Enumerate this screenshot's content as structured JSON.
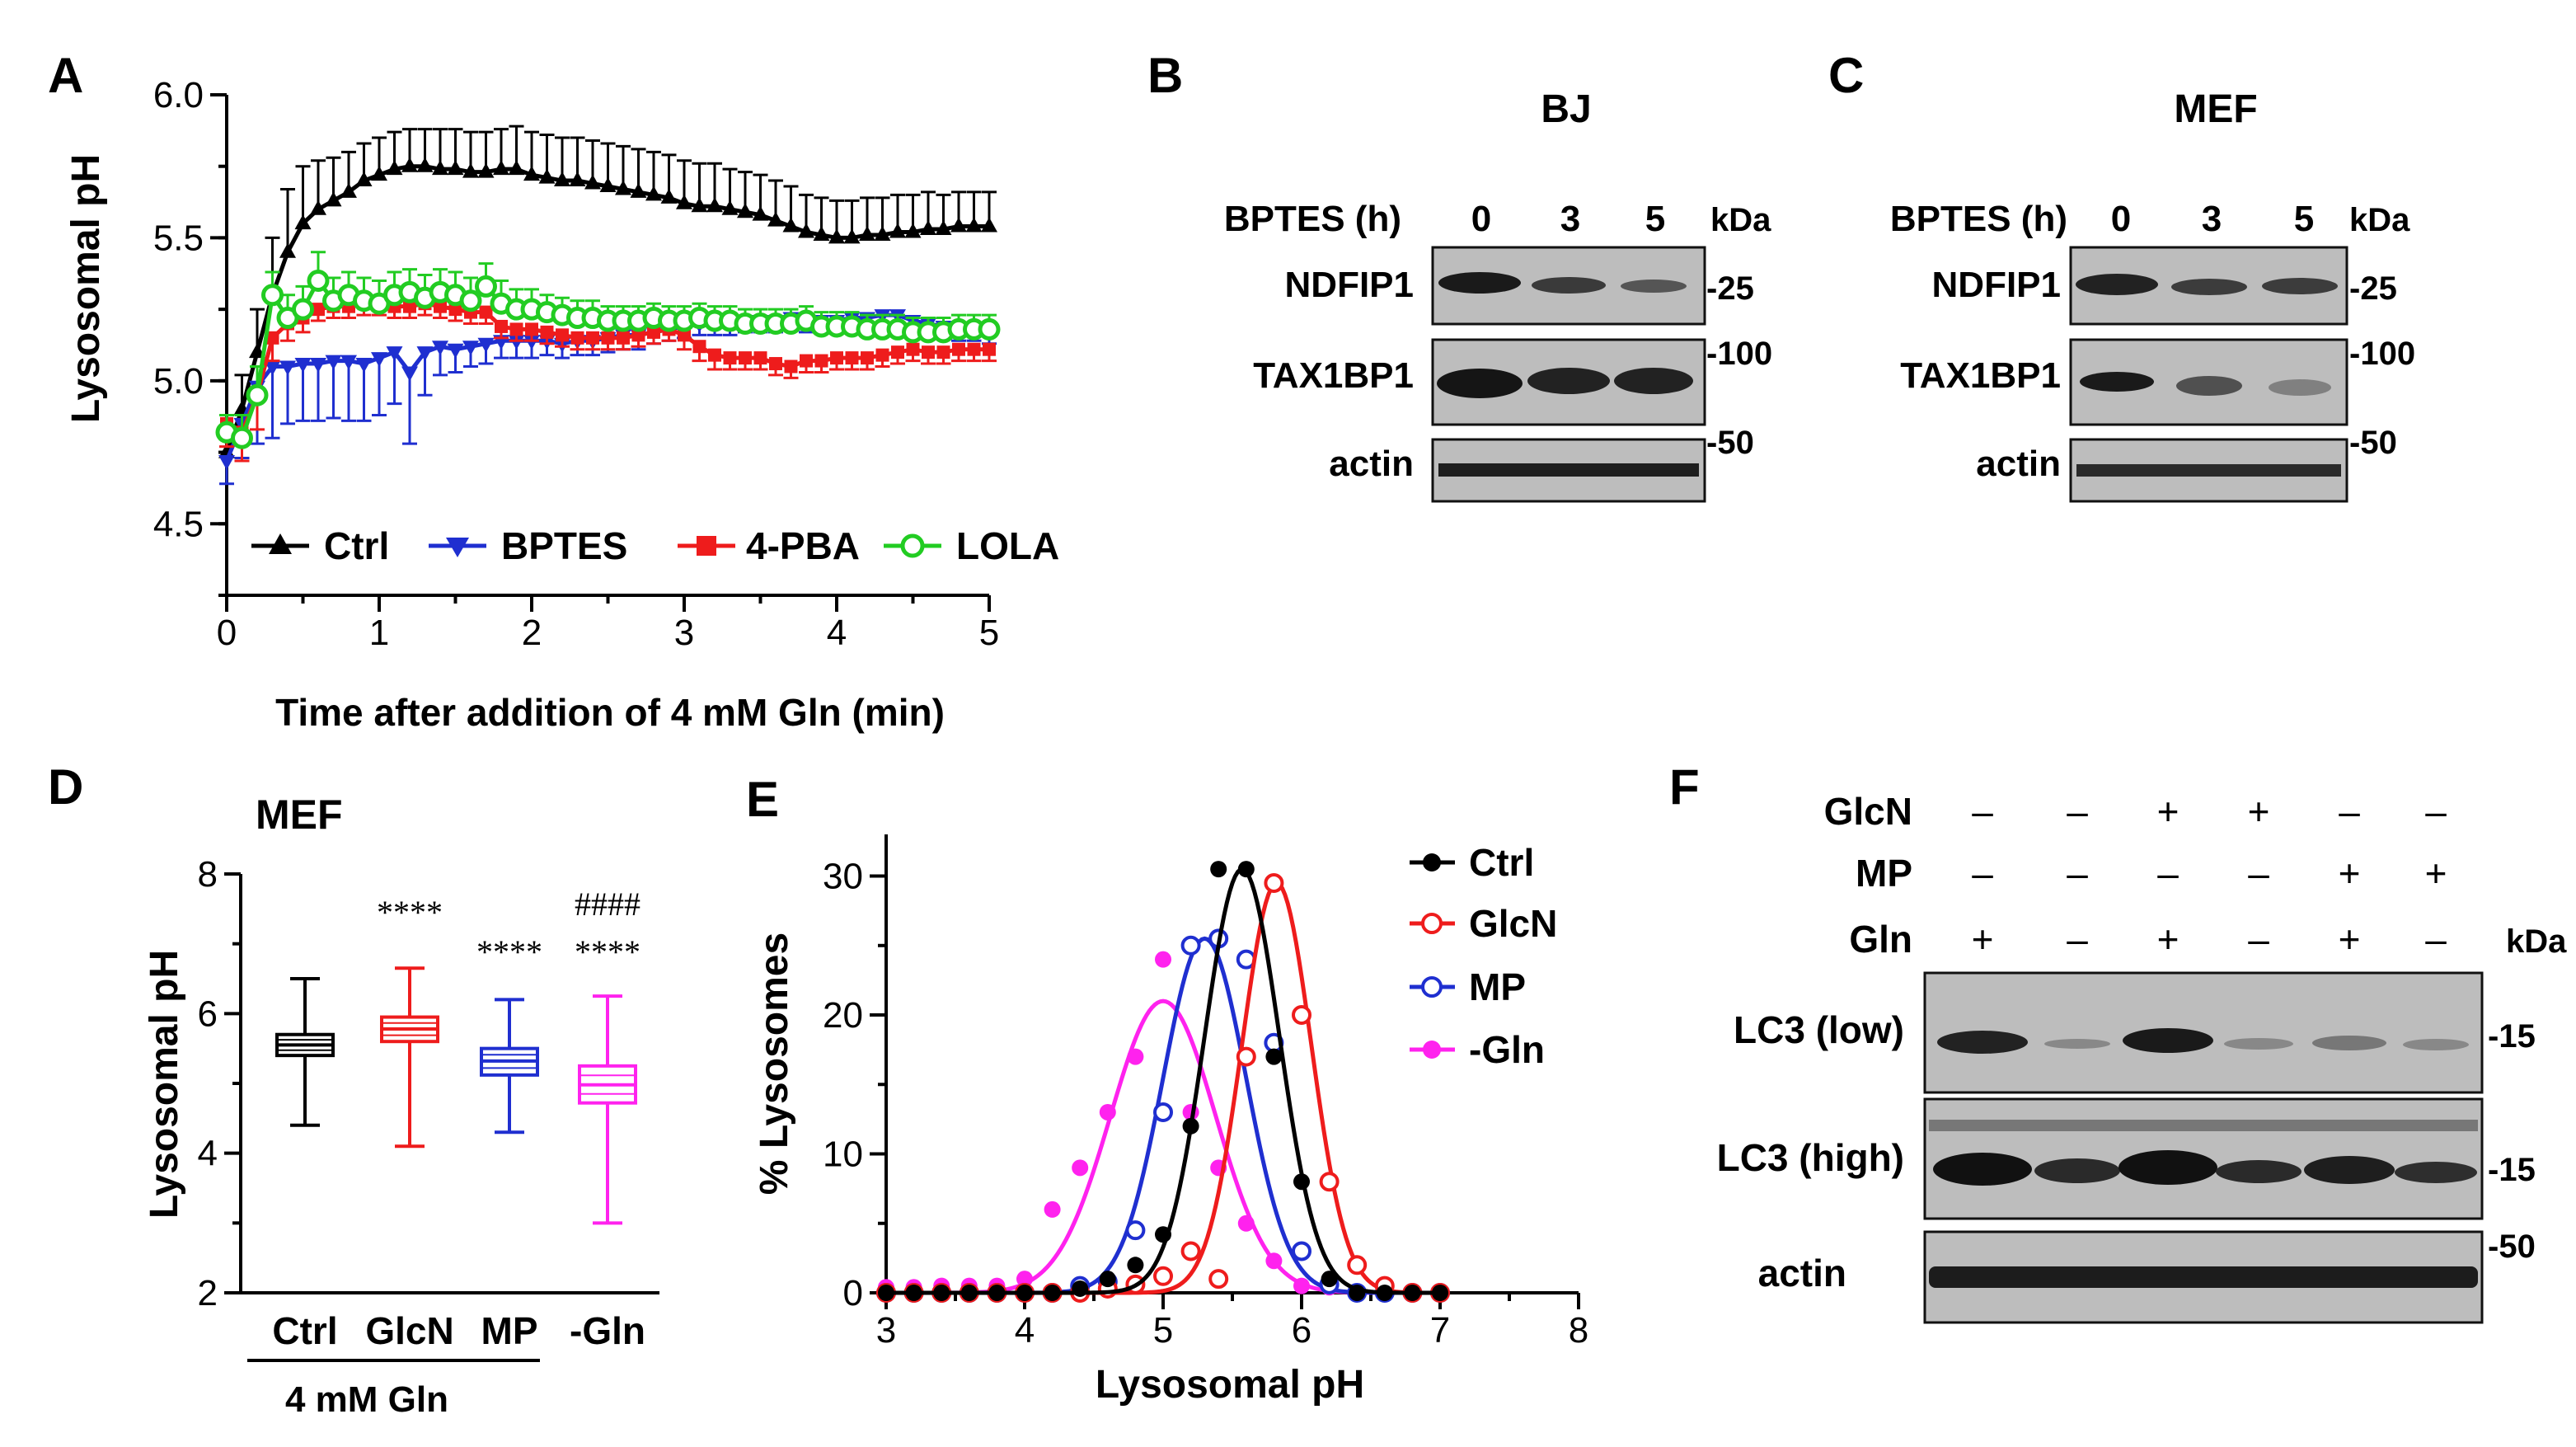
{
  "panel_labels": {
    "a": "A",
    "b": "B",
    "c": "C",
    "d": "D",
    "e": "E",
    "f": "F"
  },
  "colors": {
    "ctrl": "#000000",
    "bptes": "#1f2fd0",
    "pba": "#ee1c1c",
    "lola": "#22cc22",
    "glcn": "#ee1c1c",
    "mp": "#1f2fd0",
    "minus_gln": "#ff22ee"
  },
  "chart_data": [
    {
      "panel": "A",
      "type": "line",
      "title": "",
      "xlabel": "Time after addition of 4 mM Gln (min)",
      "ylabel": "Lysosomal pH",
      "xlim": [
        0,
        5
      ],
      "ylim": [
        4.25,
        6.0
      ],
      "xticks": [
        "0",
        "1",
        "2",
        "3",
        "4",
        "5"
      ],
      "yticks": [
        "4.5",
        "5.0",
        "5.5",
        "6.0"
      ],
      "legend": [
        "Ctrl",
        "BPTES",
        "4-PBA",
        "LOLA"
      ],
      "series": [
        {
          "name": "Ctrl",
          "x": [
            0,
            0.1,
            0.2,
            0.3,
            0.4,
            0.5,
            0.6,
            0.7,
            0.8,
            0.9,
            1.0,
            1.1,
            1.2,
            1.3,
            1.4,
            1.5,
            1.6,
            1.7,
            1.8,
            1.9,
            2.0,
            2.1,
            2.2,
            2.3,
            2.4,
            2.5,
            2.6,
            2.7,
            2.8,
            2.9,
            3.0,
            3.1,
            3.2,
            3.3,
            3.4,
            3.5,
            3.6,
            3.7,
            3.8,
            3.9,
            4.0,
            4.1,
            4.2,
            4.3,
            4.4,
            4.5,
            4.6,
            4.7,
            4.8,
            4.9,
            5.0
          ],
          "y": [
            4.75,
            4.9,
            5.1,
            5.3,
            5.45,
            5.55,
            5.6,
            5.63,
            5.66,
            5.7,
            5.72,
            5.74,
            5.75,
            5.75,
            5.74,
            5.74,
            5.73,
            5.73,
            5.74,
            5.74,
            5.72,
            5.71,
            5.7,
            5.7,
            5.69,
            5.68,
            5.67,
            5.66,
            5.65,
            5.64,
            5.62,
            5.61,
            5.61,
            5.6,
            5.59,
            5.58,
            5.56,
            5.54,
            5.52,
            5.51,
            5.5,
            5.5,
            5.51,
            5.51,
            5.52,
            5.52,
            5.53,
            5.53,
            5.54,
            5.54,
            5.54
          ],
          "err": [
            0.08,
            0.12,
            0.15,
            0.2,
            0.22,
            0.2,
            0.17,
            0.15,
            0.14,
            0.13,
            0.13,
            0.13,
            0.13,
            0.13,
            0.14,
            0.14,
            0.14,
            0.14,
            0.14,
            0.15,
            0.15,
            0.15,
            0.15,
            0.15,
            0.15,
            0.15,
            0.15,
            0.15,
            0.15,
            0.15,
            0.15,
            0.15,
            0.15,
            0.14,
            0.14,
            0.14,
            0.14,
            0.14,
            0.13,
            0.13,
            0.13,
            0.13,
            0.13,
            0.13,
            0.13,
            0.13,
            0.13,
            0.12,
            0.12,
            0.12,
            0.12
          ]
        },
        {
          "name": "BPTES",
          "x": [
            0,
            0.1,
            0.2,
            0.3,
            0.4,
            0.5,
            0.6,
            0.7,
            0.8,
            0.9,
            1.0,
            1.1,
            1.2,
            1.3,
            1.4,
            1.5,
            1.6,
            1.7,
            1.8,
            1.9,
            2.0,
            2.1,
            2.2,
            2.3,
            2.4,
            2.5,
            2.6,
            2.7,
            2.8,
            2.9,
            3.0,
            3.1,
            3.2,
            3.3,
            3.4,
            3.5,
            3.6,
            3.7,
            3.8,
            3.9,
            4.0,
            4.1,
            4.2,
            4.3,
            4.4,
            4.5,
            4.6,
            4.7,
            4.8,
            4.9,
            5.0
          ],
          "y": [
            4.72,
            4.85,
            4.98,
            5.05,
            5.05,
            5.06,
            5.06,
            5.07,
            5.07,
            5.06,
            5.08,
            5.1,
            5.03,
            5.1,
            5.12,
            5.11,
            5.12,
            5.13,
            5.14,
            5.14,
            5.14,
            5.14,
            5.13,
            5.14,
            5.14,
            5.15,
            5.16,
            5.16,
            5.17,
            5.18,
            5.19,
            5.2,
            5.2,
            5.2,
            5.21,
            5.21,
            5.21,
            5.22,
            5.21,
            5.21,
            5.21,
            5.22,
            5.22,
            5.23,
            5.23,
            5.21,
            5.2,
            5.19,
            5.18,
            5.18,
            5.17
          ],
          "err": [
            0.08,
            0.12,
            0.2,
            0.25,
            0.2,
            0.2,
            0.2,
            0.2,
            0.21,
            0.2,
            0.2,
            0.18,
            0.25,
            0.15,
            0.1,
            0.08,
            0.07,
            0.07,
            0.06,
            0.06,
            0.06,
            0.05,
            0.05,
            0.05,
            0.05,
            0.05,
            0.05,
            0.05,
            0.04,
            0.04,
            0.04,
            0.04,
            0.04,
            0.04,
            0.04,
            0.04,
            0.04,
            0.04,
            0.04,
            0.04,
            0.04,
            0.04,
            0.04,
            0.04,
            0.04,
            0.04,
            0.04,
            0.04,
            0.04,
            0.04,
            0.04
          ]
        },
        {
          "name": "4-PBA",
          "x": [
            0,
            0.1,
            0.2,
            0.3,
            0.4,
            0.5,
            0.6,
            0.7,
            0.8,
            0.9,
            1.0,
            1.1,
            1.2,
            1.3,
            1.4,
            1.5,
            1.6,
            1.7,
            1.8,
            1.9,
            2.0,
            2.1,
            2.2,
            2.3,
            2.4,
            2.5,
            2.6,
            2.7,
            2.8,
            2.9,
            3.0,
            3.1,
            3.2,
            3.3,
            3.4,
            3.5,
            3.6,
            3.7,
            3.8,
            3.9,
            4.0,
            4.1,
            4.2,
            4.3,
            4.4,
            4.5,
            4.6,
            4.7,
            4.8,
            4.9,
            5.0
          ],
          "y": [
            4.85,
            4.82,
            4.95,
            5.15,
            5.2,
            5.22,
            5.25,
            5.26,
            5.26,
            5.27,
            5.27,
            5.26,
            5.26,
            5.27,
            5.26,
            5.25,
            5.24,
            5.24,
            5.19,
            5.18,
            5.18,
            5.17,
            5.16,
            5.15,
            5.15,
            5.15,
            5.15,
            5.16,
            5.17,
            5.18,
            5.16,
            5.12,
            5.09,
            5.08,
            5.08,
            5.08,
            5.06,
            5.05,
            5.07,
            5.07,
            5.08,
            5.08,
            5.08,
            5.09,
            5.1,
            5.11,
            5.1,
            5.1,
            5.11,
            5.11,
            5.11
          ],
          "err": [
            0.08,
            0.1,
            0.12,
            0.08,
            0.06,
            0.05,
            0.04,
            0.04,
            0.04,
            0.04,
            0.04,
            0.04,
            0.04,
            0.04,
            0.04,
            0.04,
            0.04,
            0.04,
            0.04,
            0.04,
            0.04,
            0.04,
            0.04,
            0.04,
            0.04,
            0.04,
            0.04,
            0.04,
            0.04,
            0.04,
            0.05,
            0.05,
            0.05,
            0.04,
            0.04,
            0.04,
            0.04,
            0.04,
            0.04,
            0.04,
            0.04,
            0.04,
            0.04,
            0.04,
            0.04,
            0.04,
            0.04,
            0.04,
            0.04,
            0.04,
            0.04
          ]
        },
        {
          "name": "LOLA",
          "x": [
            0,
            0.1,
            0.2,
            0.3,
            0.4,
            0.5,
            0.6,
            0.7,
            0.8,
            0.9,
            1.0,
            1.1,
            1.2,
            1.3,
            1.4,
            1.5,
            1.6,
            1.7,
            1.8,
            1.9,
            2.0,
            2.1,
            2.2,
            2.3,
            2.4,
            2.5,
            2.6,
            2.7,
            2.8,
            2.9,
            3.0,
            3.1,
            3.2,
            3.3,
            3.4,
            3.5,
            3.6,
            3.7,
            3.8,
            3.9,
            4.0,
            4.1,
            4.2,
            4.3,
            4.4,
            4.5,
            4.6,
            4.7,
            4.8,
            4.9,
            5.0
          ],
          "y": [
            4.82,
            4.8,
            4.95,
            5.3,
            5.22,
            5.25,
            5.35,
            5.28,
            5.3,
            5.28,
            5.27,
            5.3,
            5.31,
            5.29,
            5.31,
            5.3,
            5.28,
            5.33,
            5.27,
            5.25,
            5.25,
            5.24,
            5.23,
            5.22,
            5.22,
            5.21,
            5.21,
            5.21,
            5.22,
            5.21,
            5.21,
            5.22,
            5.21,
            5.21,
            5.2,
            5.2,
            5.2,
            5.2,
            5.21,
            5.19,
            5.19,
            5.19,
            5.18,
            5.18,
            5.18,
            5.17,
            5.17,
            5.17,
            5.18,
            5.18,
            5.18
          ],
          "err": [
            0.06,
            0.08,
            0.1,
            0.08,
            0.08,
            0.08,
            0.1,
            0.08,
            0.08,
            0.08,
            0.08,
            0.08,
            0.08,
            0.08,
            0.08,
            0.08,
            0.08,
            0.08,
            0.08,
            0.07,
            0.07,
            0.06,
            0.06,
            0.06,
            0.06,
            0.05,
            0.05,
            0.05,
            0.05,
            0.05,
            0.05,
            0.05,
            0.05,
            0.05,
            0.05,
            0.05,
            0.05,
            0.05,
            0.05,
            0.05,
            0.05,
            0.05,
            0.05,
            0.05,
            0.05,
            0.05,
            0.05,
            0.05,
            0.05,
            0.05,
            0.05
          ]
        }
      ]
    },
    {
      "panel": "D",
      "type": "box",
      "title": "MEF",
      "ylabel": "Lysosomal pH",
      "ylim": [
        2,
        8
      ],
      "yticks": [
        "2",
        "4",
        "6",
        "8"
      ],
      "categories": [
        "Ctrl",
        "GlcN",
        "MP",
        "-Gln"
      ],
      "group_label": "4 mM Gln",
      "boxes": [
        {
          "name": "Ctrl",
          "min": 4.4,
          "q1": 5.4,
          "median": 5.55,
          "q3": 5.7,
          "max": 6.5,
          "sig": []
        },
        {
          "name": "GlcN",
          "min": 4.1,
          "q1": 5.6,
          "median": 5.78,
          "q3": 5.95,
          "max": 6.65,
          "sig": [
            "****"
          ]
        },
        {
          "name": "MP",
          "min": 4.3,
          "q1": 5.12,
          "median": 5.32,
          "q3": 5.5,
          "max": 6.2,
          "sig": [
            "****"
          ]
        },
        {
          "name": "-Gln",
          "min": 3.0,
          "q1": 4.72,
          "median": 4.98,
          "q3": 5.25,
          "max": 6.25,
          "sig": [
            "####",
            "****"
          ]
        }
      ]
    },
    {
      "panel": "E",
      "type": "scatter",
      "title": "",
      "xlabel": "Lysosomal pH",
      "ylabel": "% Lysosomes",
      "xlim": [
        3,
        8
      ],
      "ylim": [
        0,
        33
      ],
      "xticks": [
        "3",
        "4",
        "5",
        "6",
        "7",
        "8"
      ],
      "yticks": [
        "0",
        "10",
        "20",
        "30"
      ],
      "legend": [
        "Ctrl",
        "GlcN",
        "MP",
        "-Gln"
      ],
      "series": [
        {
          "name": "Ctrl",
          "fill": true,
          "amp": 30.5,
          "mu": 5.57,
          "sigma": 0.27,
          "x": [
            3.0,
            3.2,
            3.4,
            3.6,
            3.8,
            4.0,
            4.2,
            4.4,
            4.6,
            4.8,
            5.0,
            5.2,
            5.4,
            5.6,
            5.8,
            6.0,
            6.2,
            6.4,
            6.6,
            6.8,
            7.0
          ],
          "y": [
            0,
            0,
            0,
            0,
            0,
            0,
            0,
            0.3,
            1,
            2,
            4.2,
            12,
            30.5,
            30.5,
            17,
            8,
            1,
            0,
            0,
            0,
            0
          ]
        },
        {
          "name": "GlcN",
          "fill": false,
          "amp": 29.5,
          "mu": 5.82,
          "sigma": 0.25,
          "x": [
            3.0,
            3.2,
            3.4,
            3.6,
            3.8,
            4.0,
            4.2,
            4.4,
            4.6,
            4.8,
            5.0,
            5.2,
            5.4,
            5.6,
            5.8,
            6.0,
            6.2,
            6.4,
            6.6,
            6.8,
            7.0
          ],
          "y": [
            0,
            0,
            0,
            0,
            0,
            0,
            0,
            0,
            0.3,
            0.6,
            1.2,
            3,
            1,
            17,
            29.5,
            20,
            8,
            2,
            0.5,
            0,
            0
          ]
        },
        {
          "name": "MP",
          "fill": false,
          "amp": 25.5,
          "mu": 5.3,
          "sigma": 0.3,
          "x": [
            3.0,
            3.2,
            3.4,
            3.6,
            3.8,
            4.0,
            4.2,
            4.4,
            4.6,
            4.8,
            5.0,
            5.2,
            5.4,
            5.6,
            5.8,
            6.0,
            6.2,
            6.4,
            6.6,
            6.8,
            7.0
          ],
          "y": [
            0,
            0,
            0,
            0,
            0,
            0,
            0,
            0.5,
            0.8,
            4.5,
            13,
            25,
            25.5,
            24,
            18,
            3,
            0.6,
            0,
            0,
            0,
            0
          ]
        },
        {
          "name": "-Gln",
          "fill": true,
          "amp": 21,
          "mu": 5.0,
          "sigma": 0.38,
          "x": [
            3.0,
            3.2,
            3.4,
            3.6,
            3.8,
            4.0,
            4.2,
            4.4,
            4.6,
            4.8,
            5.0,
            5.2,
            5.4,
            5.6,
            5.8,
            6.0,
            6.2,
            6.4,
            6.6,
            6.8,
            7.0
          ],
          "y": [
            0.4,
            0.4,
            0.5,
            0.5,
            0.5,
            1,
            6,
            9,
            13,
            17,
            24,
            13,
            9,
            5,
            2.3,
            0.5,
            0.4,
            0,
            0,
            0,
            0
          ]
        }
      ]
    }
  ],
  "panel_a": {
    "legend_labels": [
      "Ctrl",
      "BPTES",
      "4-PBA",
      "LOLA"
    ]
  },
  "panel_b": {
    "title": "BJ",
    "treatment_label": "BPTES (h)",
    "times": [
      "0",
      "3",
      "5"
    ],
    "kda_label": "kDa",
    "rows": [
      "NDFIP1",
      "TAX1BP1",
      "actin"
    ],
    "markers": [
      "-25",
      "-100",
      "-50"
    ]
  },
  "panel_c": {
    "title": "MEF",
    "treatment_label": "BPTES (h)",
    "times": [
      "0",
      "3",
      "5"
    ],
    "kda_label": "kDa",
    "rows": [
      "NDFIP1",
      "TAX1BP1",
      "actin"
    ],
    "markers": [
      "-25",
      "-100",
      "-50"
    ]
  },
  "panel_f": {
    "conditions": [
      {
        "name": "GlcN",
        "signs": [
          "–",
          "–",
          "+",
          "+",
          "–",
          "–"
        ]
      },
      {
        "name": "MP",
        "signs": [
          "–",
          "–",
          "–",
          "–",
          "+",
          "+"
        ]
      },
      {
        "name": "Gln",
        "signs": [
          "+",
          "–",
          "+",
          "–",
          "+",
          "–"
        ]
      }
    ],
    "kda_label": "kDa",
    "rows": [
      "LC3 (low)",
      "LC3 (high)",
      "actin"
    ],
    "markers": [
      "-15",
      "-15",
      "-50"
    ]
  }
}
